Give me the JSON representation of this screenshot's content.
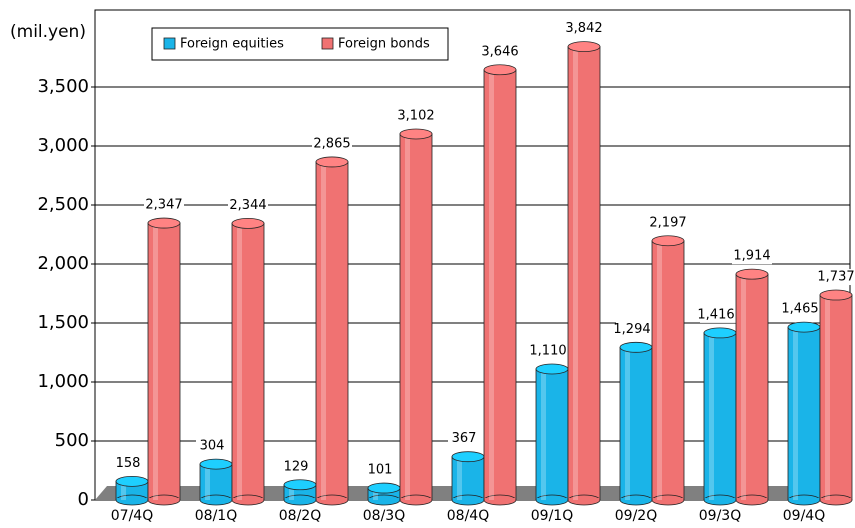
{
  "chart_data": {
    "type": "bar",
    "y_axis_label": "(mil.yen)",
    "categories": [
      "07/4Q",
      "08/1Q",
      "08/2Q",
      "08/3Q",
      "08/4Q",
      "09/1Q",
      "09/2Q",
      "09/3Q",
      "09/4Q"
    ],
    "series": [
      {
        "name": "Foreign equities",
        "color": "#1ab4e8",
        "values": [
          158,
          304,
          129,
          101,
          367,
          1110,
          1294,
          1416,
          1465
        ],
        "value_labels": [
          "158",
          "304",
          "129",
          "101",
          "367",
          "1,110",
          "1,294",
          "1,416",
          "1,465"
        ]
      },
      {
        "name": "Foreign bonds",
        "color": "#f07272",
        "values": [
          2347,
          2344,
          2865,
          3102,
          3646,
          3842,
          2197,
          1914,
          1737
        ],
        "value_labels": [
          "2,347",
          "2,344",
          "2,865",
          "3,102",
          "3,646",
          "3,842",
          "2,197",
          "1,914",
          "1,737"
        ]
      }
    ],
    "ylim": [
      0,
      4000
    ],
    "yticks": [
      0,
      500,
      {
        "value": 1000,
        "label": "1,000"
      },
      {
        "value": 1500,
        "label": "1,500"
      },
      {
        "value": 2000,
        "label": "2,000"
      },
      {
        "value": 2500,
        "label": "2,500"
      },
      {
        "value": 3000,
        "label": "3,000"
      },
      {
        "value": 3500,
        "label": "3,500"
      }
    ],
    "grid": true
  }
}
